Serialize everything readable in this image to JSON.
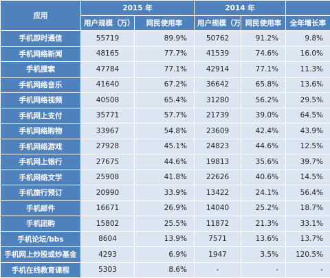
{
  "table": {
    "header": {
      "app": "应用",
      "y2015": "2015 年",
      "y2014": "2014 年",
      "users2015": "用户规模（万）",
      "rate2015": "网民使用率",
      "users2014": "用户规模（万）",
      "rate2014": "网民使用率",
      "growth": "全年增长率"
    },
    "rows": [
      [
        "手机即时通信",
        "55719",
        "89.9%",
        "50762",
        "91.2%",
        "9.8%"
      ],
      [
        "手机网络新闻",
        "48165",
        "77.7%",
        "41539",
        "74.6%",
        "16.0%"
      ],
      [
        "手机搜索",
        "47784",
        "77.1%",
        "42914",
        "77.1%",
        "11.3%"
      ],
      [
        "手机网络音乐",
        "41640",
        "67.2%",
        "36642",
        "65.8%",
        "13.6%"
      ],
      [
        "手机网络视频",
        "40508",
        "65.4%",
        "31280",
        "56.2%",
        "29.5%"
      ],
      [
        "手机网上支付",
        "35771",
        "57.7%",
        "21739",
        "39.0%",
        "64.5%"
      ],
      [
        "手机网络购物",
        "33967",
        "54.8%",
        "23609",
        "42.4%",
        "43.9%"
      ],
      [
        "手机网络游戏",
        "27928",
        "45.1%",
        "24823",
        "44.6%",
        "12.5%"
      ],
      [
        "手机网上银行",
        "27675",
        "44.6%",
        "19813",
        "35.6%",
        "39.7%"
      ],
      [
        "手机网络文学",
        "25908",
        "41.8%",
        "22626",
        "40.6%",
        "14.5%"
      ],
      [
        "手机旅行预订",
        "20990",
        "33.9%",
        "13422",
        "24.1%",
        "56.4%"
      ],
      [
        "手机邮件",
        "16671",
        "26.9%",
        "14040",
        "25.2%",
        "18.7%"
      ],
      [
        "手机团购",
        "15802",
        "25.5%",
        "11872",
        "21.3%",
        "33.1%"
      ],
      [
        "手机论坛/bbs",
        "8604",
        "13.9%",
        "7571",
        "13.6%",
        "13.7%"
      ],
      [
        "手机网上炒股或炒基金",
        "4293",
        "6.9%",
        "1947",
        "3.5%",
        "120.5%"
      ],
      [
        "手机在线教育课程",
        "5303",
        "8.6%",
        "-",
        "-",
        "-"
      ]
    ]
  }
}
